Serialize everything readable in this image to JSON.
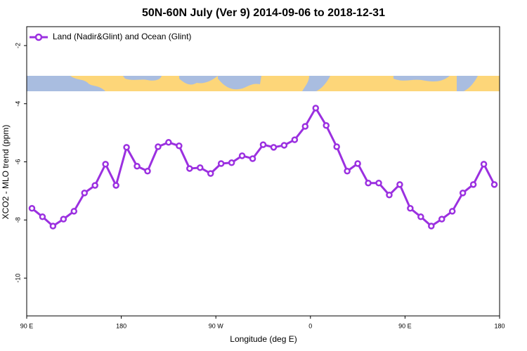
{
  "chart_data": {
    "type": "line",
    "title": "50N-60N July (Ver 9)   2014-09-06 to 2018-12-31",
    "x_label": "Longitude (deg E)",
    "y_label": "XCO2 - MLO trend (ppm)",
    "x": [
      95,
      105,
      115,
      125,
      135,
      145,
      155,
      165,
      175,
      185,
      195,
      205,
      215,
      225,
      235,
      245,
      255,
      265,
      275,
      285,
      295,
      305,
      315,
      325,
      335,
      345,
      355,
      365,
      375,
      385,
      395,
      405,
      415,
      425,
      435,
      445,
      455,
      465,
      475,
      485,
      495,
      505,
      515,
      525,
      535
    ],
    "series": [
      {
        "name": "Land (Nadir&Glint) and Ocean (Glint)",
        "color": "#9b30e0",
        "values": [
          -7.6,
          -7.89,
          -8.21,
          -7.97,
          -7.7,
          -7.07,
          -6.81,
          -6.08,
          -6.81,
          -5.5,
          -6.15,
          -6.32,
          -5.48,
          -5.33,
          -5.45,
          -6.23,
          -6.2,
          -6.4,
          -6.06,
          -6.03,
          -5.79,
          -5.89,
          -5.41,
          -5.5,
          -5.43,
          -5.24,
          -4.78,
          -4.15,
          -4.75,
          -5.48,
          -6.32,
          -6.06,
          -6.73,
          -6.73,
          -7.14,
          -6.78,
          -7.6,
          -7.89,
          -8.21,
          -7.97,
          -7.7,
          -7.07,
          -6.78,
          -6.08,
          -6.78
        ]
      }
    ],
    "xlim": [
      90,
      540
    ],
    "xticks": [
      {
        "value": 90,
        "label": "90 E"
      },
      180,
      {
        "value": 270,
        "label": "90 W"
      },
      {
        "value": 360,
        "label": "0"
      },
      {
        "value": 450,
        "label": "90 E"
      },
      180
    ],
    "ylim": [
      -1.35,
      -11.3
    ],
    "yticks": [
      -2,
      -4,
      -6,
      -8,
      -10
    ],
    "legend": "top-left"
  }
}
